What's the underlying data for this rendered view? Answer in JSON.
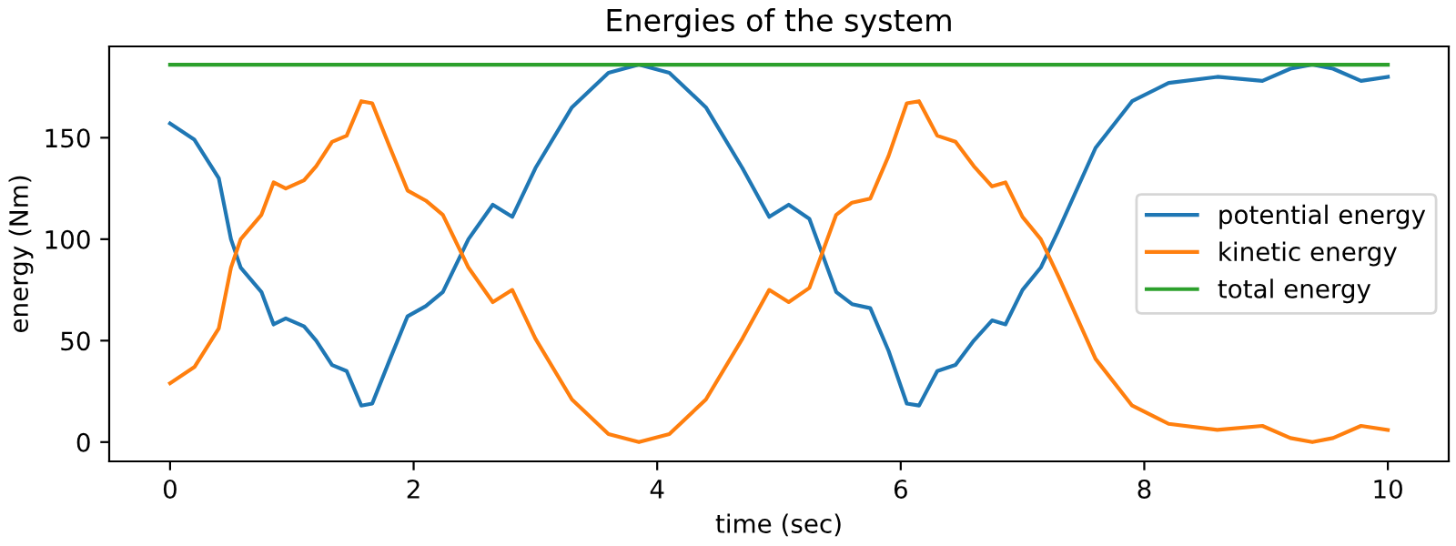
{
  "chart_data": {
    "type": "line",
    "title": "Energies of the system",
    "xlabel": "time (sec)",
    "ylabel": "energy (Nm)",
    "x": [
      0,
      0.2,
      0.4,
      0.5,
      0.58,
      0.75,
      0.85,
      0.95,
      1.1,
      1.2,
      1.33,
      1.45,
      1.57,
      1.66,
      1.8,
      1.95,
      2.1,
      2.24,
      2.45,
      2.65,
      2.81,
      3.0,
      3.3,
      3.6,
      3.85,
      4.1,
      4.4,
      4.7,
      4.92,
      5.08,
      5.25,
      5.47,
      5.6,
      5.75,
      5.9,
      6.05,
      6.15,
      6.3,
      6.45,
      6.6,
      6.75,
      6.86,
      7.0,
      7.15,
      7.3,
      7.6,
      7.9,
      8.2,
      8.6,
      8.97,
      9.2,
      9.38,
      9.55,
      9.78,
      10
    ],
    "series": [
      {
        "name": "potential energy",
        "color": "#1f77b4",
        "values": [
          157,
          149,
          130,
          100,
          86,
          74,
          58,
          61,
          57,
          50,
          38,
          35,
          18,
          19,
          40,
          62,
          67,
          74,
          100,
          117,
          111,
          135,
          165,
          182,
          186,
          182,
          165,
          135,
          111,
          117,
          110,
          74,
          68,
          66,
          45,
          19,
          18,
          35,
          38,
          50,
          60,
          58,
          75,
          86,
          105,
          145,
          168,
          177,
          180,
          178,
          184,
          186,
          184,
          178,
          180
        ]
      },
      {
        "name": "kinetic energy",
        "color": "#ff7f0e",
        "values": [
          29,
          37,
          56,
          86,
          100,
          112,
          128,
          125,
          129,
          136,
          148,
          151,
          168,
          167,
          146,
          124,
          119,
          112,
          86,
          69,
          75,
          51,
          21,
          4,
          0,
          4,
          21,
          51,
          75,
          69,
          76,
          112,
          118,
          120,
          141,
          167,
          168,
          151,
          148,
          136,
          126,
          128,
          111,
          100,
          81,
          41,
          18,
          9,
          6,
          8,
          2,
          0,
          2,
          8,
          6
        ]
      },
      {
        "name": "total energy",
        "color": "#2ca02c",
        "x": [
          0,
          10
        ],
        "values": [
          186,
          186
        ]
      }
    ],
    "xlim": [
      -0.5,
      10.5
    ],
    "ylim": [
      -9.5,
      195
    ],
    "xticks": [
      0,
      2,
      4,
      6,
      8,
      10
    ],
    "yticks": [
      0,
      50,
      100,
      150
    ],
    "grid": false,
    "legend": "center right"
  }
}
